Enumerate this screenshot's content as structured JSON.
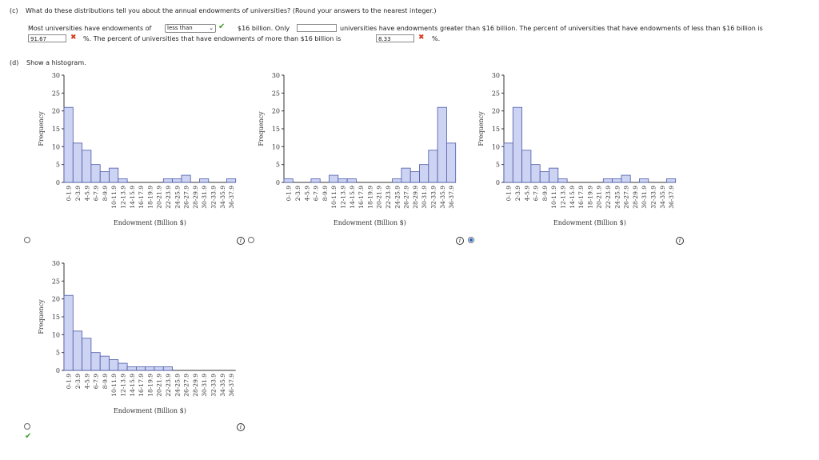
{
  "part_c": {
    "label": "(c)",
    "question": "What do these distributions tell you about the annual endowments of universities? (Round your answers to the nearest integer.)",
    "s1": "Most universities have endowments of",
    "select_value": "less than",
    "s2": "$16 billion. Only",
    "input1_value": "",
    "s3": "universities have endowments greater than $16 billion. The percent of universities that have endowments of less than $16 billion is",
    "input2_value": "91.67",
    "s4": "%. The percent of universities that have endowments of more than $16 billion is",
    "input3_value": "8.33",
    "s5": "%."
  },
  "part_d": {
    "label": "(d)",
    "prompt": "Show a histogram."
  },
  "chart_data": [
    {
      "type": "bar",
      "categories": [
        "0-1.9",
        "2-3.9",
        "4-5.9",
        "6-7.9",
        "8-9.9",
        "10-11.9",
        "12-13.9",
        "14-15.9",
        "16-17.9",
        "18-19.9",
        "20-21.9",
        "22-23.9",
        "24-25.9",
        "26-27.9",
        "28-29.9",
        "30-31.9",
        "32-33.9",
        "34-35.9",
        "36-37.9"
      ],
      "values": [
        21,
        11,
        9,
        5,
        3,
        4,
        1,
        0,
        0,
        0,
        0,
        1,
        1,
        2,
        0,
        1,
        0,
        0,
        1
      ],
      "xlabel": "Endowment (Billion $)",
      "ylabel": "Frequency",
      "yticks": [
        0,
        5,
        10,
        15,
        20,
        25,
        30
      ],
      "ylim": [
        0,
        30
      ]
    },
    {
      "type": "bar",
      "categories": [
        "0-1.9",
        "2-3.9",
        "4-5.9",
        "6-7.9",
        "8-9.9",
        "10-11.9",
        "12-13.9",
        "14-15.9",
        "16-17.9",
        "18-19.9",
        "20-21.9",
        "22-23.9",
        "24-25.9",
        "26-27.9",
        "28-29.9",
        "30-31.9",
        "32-33.9",
        "34-35.9",
        "36-37.9"
      ],
      "values": [
        1,
        0,
        0,
        1,
        0,
        2,
        1,
        1,
        0,
        0,
        0,
        0,
        1,
        4,
        3,
        5,
        9,
        21,
        11
      ],
      "xlabel": "Endowment (Billion $)",
      "ylabel": "Frequency",
      "yticks": [
        0,
        5,
        10,
        15,
        20,
        25,
        30
      ],
      "ylim": [
        0,
        30
      ]
    },
    {
      "type": "bar",
      "categories": [
        "0-1.9",
        "2-3.9",
        "4-5.9",
        "6-7.9",
        "8-9.9",
        "10-11.9",
        "12-13.9",
        "14-15.9",
        "16-17.9",
        "18-19.9",
        "20-21.9",
        "22-23.9",
        "24-25.9",
        "26-27.9",
        "28-29.9",
        "30-31.9",
        "32-33.9",
        "34-35.9",
        "36-37.9"
      ],
      "values": [
        11,
        21,
        9,
        5,
        3,
        4,
        1,
        0,
        0,
        0,
        0,
        1,
        1,
        2,
        0,
        1,
        0,
        0,
        1
      ],
      "xlabel": "Endowment (Billion $)",
      "ylabel": "Frequency",
      "yticks": [
        0,
        5,
        10,
        15,
        20,
        25,
        30
      ],
      "ylim": [
        0,
        30
      ]
    },
    {
      "type": "bar",
      "categories": [
        "0-1.9",
        "2-3.9",
        "4-5.9",
        "6-7.9",
        "8-9.9",
        "10-11.9",
        "12-13.9",
        "14-15.9",
        "16-17.9",
        "18-19.9",
        "20-21.9",
        "22-23.9",
        "24-25.9",
        "26-27.9",
        "28-29.9",
        "30-31.9",
        "32-33.9",
        "34-35.9",
        "36-37.9"
      ],
      "values": [
        21,
        11,
        9,
        5,
        4,
        3,
        2,
        1,
        1,
        1,
        1,
        1,
        0,
        0,
        0,
        0,
        0,
        0,
        0
      ],
      "xlabel": "Endowment (Billion $)",
      "ylabel": "Frequency",
      "yticks": [
        0,
        5,
        10,
        15,
        20,
        25,
        30
      ],
      "ylim": [
        0,
        30
      ]
    }
  ],
  "colors": {
    "bar_fill": "#cdd3f2",
    "bar_stroke": "#4a5aa8",
    "select_check": "#3f9b2f",
    "wrong": "#d9381e"
  },
  "icons": {
    "correct": "check-icon",
    "incorrect": "x-icon",
    "info": "info-icon"
  }
}
